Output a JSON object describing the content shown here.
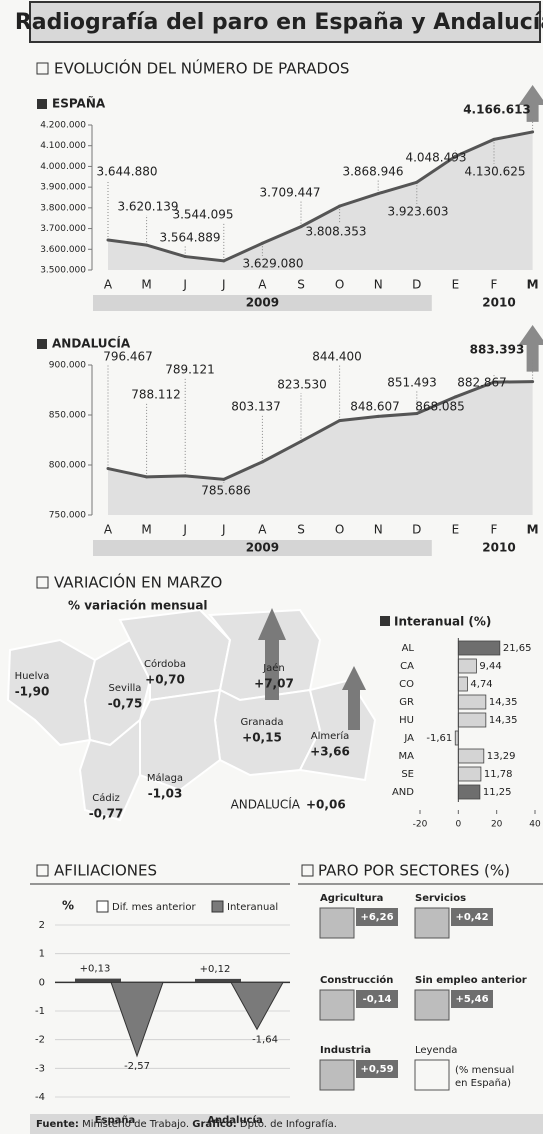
{
  "title": "Radiografía del paro en España y Andalucía",
  "section_evolution": "EVOLUCIÓN DEL NÚMERO DE PARADOS",
  "section_map": "VARIACIÓN EN MARZO",
  "map": {
    "subtitle": "% variación mensual",
    "provinces": [
      {
        "name": "Huelva",
        "value": "-1,90"
      },
      {
        "name": "Sevilla",
        "value": "-0,75"
      },
      {
        "name": "Córdoba",
        "value": "+0,70"
      },
      {
        "name": "Jaén",
        "value": "+7,07"
      },
      {
        "name": "Granada",
        "value": "+0,15"
      },
      {
        "name": "Almería",
        "value": "+3,66"
      },
      {
        "name": "Málaga",
        "value": "-1,03"
      },
      {
        "name": "Cádiz",
        "value": "-0,77"
      }
    ],
    "total": {
      "name": "ANDALUCÍA",
      "value": "+0,06"
    }
  },
  "section_affiliations": "AFILIACIONES",
  "section_sectors": "PARO POR SECTORES (%)",
  "sectors": [
    {
      "name": "Agricultura",
      "value": "+6,26"
    },
    {
      "name": "Servicios",
      "value": "+0,42"
    },
    {
      "name": "Construcción",
      "value": "-0,14"
    },
    {
      "name": "Sin empleo anterior",
      "value": "+5,46"
    },
    {
      "name": "Industria",
      "value": "+0,59"
    }
  ],
  "legend": {
    "title": "Leyenda",
    "text": "(% mensual",
    "text2": "en España)"
  },
  "footer": {
    "source_label": "Fuente:",
    "source": "Ministerio de Trabajo.",
    "credit_label": "Gráfico:",
    "credit": "Dpto. de Infografía."
  },
  "chart_data": [
    {
      "type": "line",
      "title": "ESPAÑA",
      "categories": [
        "A",
        "M",
        "J",
        "J",
        "A",
        "S",
        "O",
        "N",
        "D",
        "E",
        "F",
        "M"
      ],
      "years": [
        "2009",
        "2010"
      ],
      "values": [
        3644880,
        3620139,
        3564889,
        3544095,
        3629080,
        3709447,
        3808353,
        3868946,
        3923603,
        4048493,
        4130625,
        4166613
      ],
      "value_labels": [
        "3.644.880",
        "3.620.139",
        "3.564.889",
        "3.544.095",
        "3.629.080",
        "3.709.447",
        "3.808.353",
        "3.868.946",
        "3.923.603",
        "4.048.493",
        "4.130.625",
        "4.166.613"
      ],
      "ylim": [
        3500000,
        4200000
      ],
      "yticks": [
        {
          "value": 3500000,
          "label": "3.500.000"
        },
        {
          "value": 3600000,
          "label": "3.600.000"
        },
        {
          "value": 3700000,
          "label": "3.700.000"
        },
        {
          "value": 3800000,
          "label": "3.800.000"
        },
        {
          "value": 3900000,
          "label": "3.900.000"
        },
        {
          "value": 4000000,
          "label": "4.000.000"
        },
        {
          "value": 4100000,
          "label": "4.100.000"
        },
        {
          "value": 4200000,
          "label": "4.200.000"
        }
      ],
      "color": "#555555"
    },
    {
      "type": "line",
      "title": "ANDALUCÍA",
      "categories": [
        "A",
        "M",
        "J",
        "J",
        "A",
        "S",
        "O",
        "N",
        "D",
        "E",
        "F",
        "M"
      ],
      "years": [
        "2009",
        "2010"
      ],
      "values": [
        796467,
        788112,
        789121,
        785686,
        803137,
        823530,
        844400,
        848607,
        851493,
        868085,
        882867,
        883393
      ],
      "value_labels": [
        "796.467",
        "788.112",
        "789.121",
        "785.686",
        "803.137",
        "823.530",
        "844.400",
        "848.607",
        "851.493",
        "868.085",
        "882.867",
        "883.393"
      ],
      "ylim": [
        750000,
        900000
      ],
      "yticks": [
        {
          "value": 750000,
          "label": "750.000"
        },
        {
          "value": 800000,
          "label": "800.000"
        },
        {
          "value": 850000,
          "label": "850.000"
        },
        {
          "value": 900000,
          "label": "900.000"
        }
      ],
      "color": "#555555"
    },
    {
      "type": "hbar",
      "title": "Interanual (%)",
      "categories": [
        "AL",
        "CA",
        "CO",
        "GR",
        "HU",
        "JA",
        "MA",
        "SE",
        "AND"
      ],
      "values": [
        21.65,
        9.44,
        4.74,
        14.35,
        14.35,
        -1.61,
        13.29,
        11.78,
        11.25
      ],
      "value_labels": [
        "21,65",
        "9,44",
        "4,74",
        "14,35",
        "14,35",
        "-1,61",
        "13,29",
        "11,78",
        "11,25"
      ],
      "colors": [
        "#6e6e6e",
        "#d4d4d4",
        "#d4d4d4",
        "#d4d4d4",
        "#d4d4d4",
        "#d4d4d4",
        "#d4d4d4",
        "#d4d4d4",
        "#6e6e6e"
      ],
      "xlim": [
        -20,
        40
      ],
      "xticks": [
        -20,
        0,
        20,
        40
      ]
    },
    {
      "type": "arrowbar",
      "ylabel": "%",
      "categories": [
        "España",
        "Andalucía"
      ],
      "series": [
        {
          "name": "Dif. mes anterior",
          "color": "#ffffff",
          "values": [
            0.13,
            0.12
          ],
          "value_labels": [
            "+0,13",
            "+0,12"
          ]
        },
        {
          "name": "Interanual",
          "color": "#7a7a7a",
          "values": [
            -2.57,
            -1.64
          ],
          "value_labels": [
            "-2,57",
            "-1,64"
          ]
        }
      ],
      "ylim": [
        -4,
        2
      ],
      "yticks": [
        -4,
        -3,
        -2,
        -1,
        0,
        1,
        2
      ]
    }
  ]
}
